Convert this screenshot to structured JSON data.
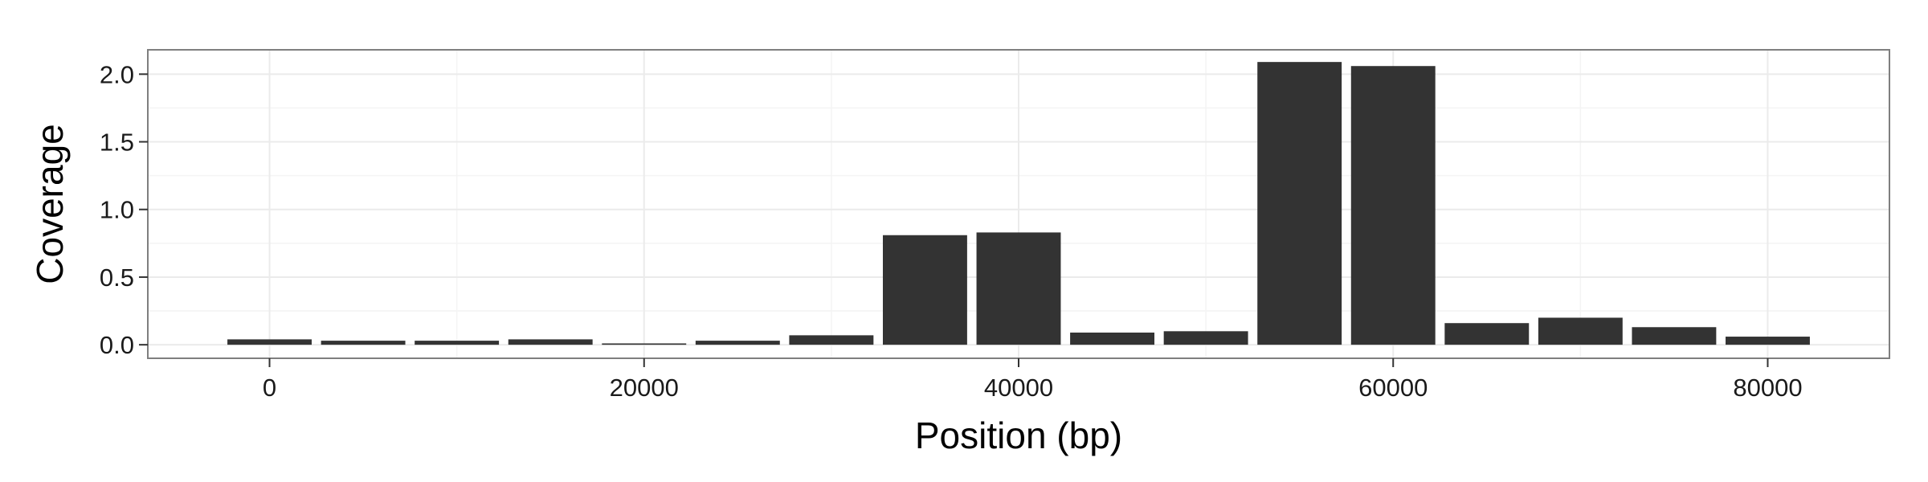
{
  "chart_data": {
    "type": "bar",
    "title": "",
    "xlabel": "Position (bp)",
    "ylabel": "Coverage",
    "xlim": [
      -6500,
      86500
    ],
    "ylim": [
      -0.1,
      2.18
    ],
    "x_ticks": [
      0,
      20000,
      40000,
      60000,
      80000
    ],
    "x_tick_labels": [
      "0",
      "20000",
      "40000",
      "60000",
      "80000"
    ],
    "y_ticks": [
      0.0,
      0.5,
      1.0,
      1.5,
      2.0
    ],
    "y_tick_labels": [
      "0.0",
      "0.5",
      "1.0",
      "1.5",
      "2.0"
    ],
    "bar_width": 4500,
    "x": [
      0,
      5000,
      10000,
      15000,
      20000,
      25000,
      30000,
      35000,
      40000,
      45000,
      50000,
      55000,
      60000,
      65000,
      70000,
      75000,
      80000
    ],
    "values": [
      0.04,
      0.03,
      0.03,
      0.04,
      0.01,
      0.03,
      0.07,
      0.81,
      0.83,
      0.09,
      0.1,
      2.09,
      2.06,
      0.16,
      0.2,
      0.13,
      0.06
    ],
    "grid": true,
    "bar_color": "#333333",
    "panel_background": "#ffffff",
    "grid_color": "#ebebeb",
    "panel_border_color": "#7f7f7f"
  }
}
